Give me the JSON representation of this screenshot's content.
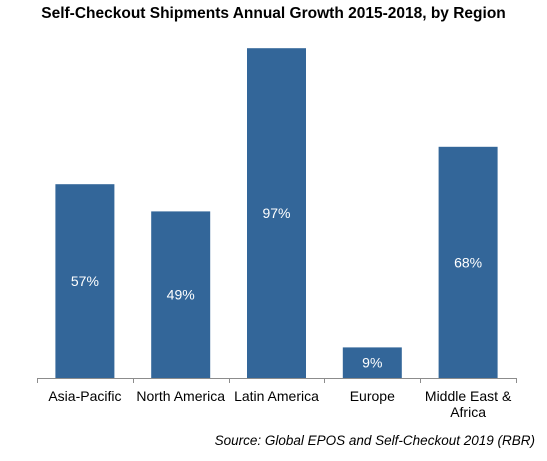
{
  "chart_data": {
    "type": "bar",
    "title": "Self-Checkout Shipments Annual Growth 2015-2018, by Region",
    "categories": [
      [
        "Asia-Pacific"
      ],
      [
        "North America"
      ],
      [
        "Latin America"
      ],
      [
        "Europe"
      ],
      [
        "Middle East &",
        "Africa"
      ]
    ],
    "values": [
      57,
      49,
      97,
      9,
      68
    ],
    "data_labels": [
      "57%",
      "49%",
      "97%",
      "9%",
      "68%"
    ],
    "value_unit": "%",
    "ylim": [
      0,
      100
    ],
    "grid": false,
    "legend": "none",
    "bar_color": "#336699",
    "label_color": "#ffffff"
  },
  "source": "Source: Global EPOS and Self-Checkout 2019 (RBR)"
}
